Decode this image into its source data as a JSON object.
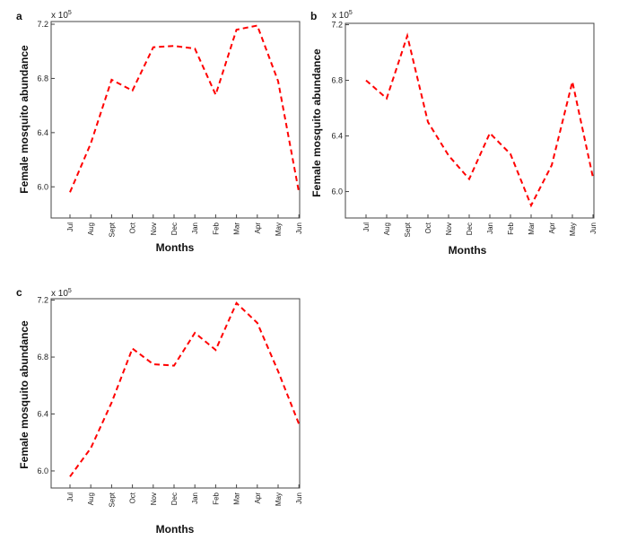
{
  "chart_data": [
    {
      "type": "line",
      "panel": "a",
      "multiplier": "x 10",
      "multiplier_exp": "5",
      "xlabel": "Months",
      "ylabel": "Female mosquito abundance",
      "categories": [
        "Jul",
        "Aug",
        "Sept",
        "Oct",
        "Nov",
        "Dec",
        "Jan",
        "Feb",
        "Mar",
        "Apr",
        "May",
        "Jun"
      ],
      "y_ticks": [
        6.0,
        6.4,
        6.8,
        7.2
      ],
      "y_tick_labels": [
        "6.0",
        "6.4",
        "6.8",
        "7.2"
      ],
      "ylim": [
        5.77,
        7.22
      ],
      "grid": false,
      "line_color": "#ff0000",
      "series": [
        {
          "values": [
            5.96,
            6.32,
            6.79,
            6.71,
            7.03,
            7.04,
            7.02,
            6.68,
            7.16,
            7.19,
            6.78,
            5.96
          ]
        }
      ]
    },
    {
      "type": "line",
      "panel": "b",
      "multiplier": "x 10",
      "multiplier_exp": "5",
      "xlabel": "Months",
      "ylabel": "Female mosquito abundance",
      "categories": [
        "Jul",
        "Aug",
        "Sept",
        "Oct",
        "Nov",
        "Dec",
        "Jan",
        "Feb",
        "Mar",
        "Apr",
        "May",
        "Jun"
      ],
      "y_ticks": [
        6.0,
        6.4,
        6.8,
        7.2
      ],
      "y_tick_labels": [
        "6.0",
        "6.4",
        "6.8",
        "7.2"
      ],
      "ylim": [
        5.81,
        7.21
      ],
      "grid": false,
      "line_color": "#ff0000",
      "series": [
        {
          "values": [
            6.8,
            6.67,
            7.12,
            6.5,
            6.26,
            6.09,
            6.42,
            6.27,
            5.9,
            6.19,
            6.79,
            6.1
          ]
        }
      ]
    },
    {
      "type": "line",
      "panel": "c",
      "multiplier": "x 10",
      "multiplier_exp": "5",
      "xlabel": "Months",
      "ylabel": "Female mosquito abundance",
      "categories": [
        "Jul",
        "Aug",
        "Sept",
        "Oct",
        "Nov",
        "Dec",
        "Jan",
        "Feb",
        "Mar",
        "Apr",
        "May",
        "Jun"
      ],
      "y_ticks": [
        6.0,
        6.4,
        6.8,
        7.2
      ],
      "y_tick_labels": [
        "6.0",
        "6.4",
        "6.8",
        "7.2"
      ],
      "ylim": [
        5.88,
        7.21
      ],
      "grid": false,
      "line_color": "#ff0000",
      "series": [
        {
          "values": [
            5.96,
            6.16,
            6.48,
            6.86,
            6.75,
            6.74,
            6.97,
            6.85,
            7.18,
            7.04,
            6.7,
            6.33
          ]
        }
      ]
    }
  ]
}
